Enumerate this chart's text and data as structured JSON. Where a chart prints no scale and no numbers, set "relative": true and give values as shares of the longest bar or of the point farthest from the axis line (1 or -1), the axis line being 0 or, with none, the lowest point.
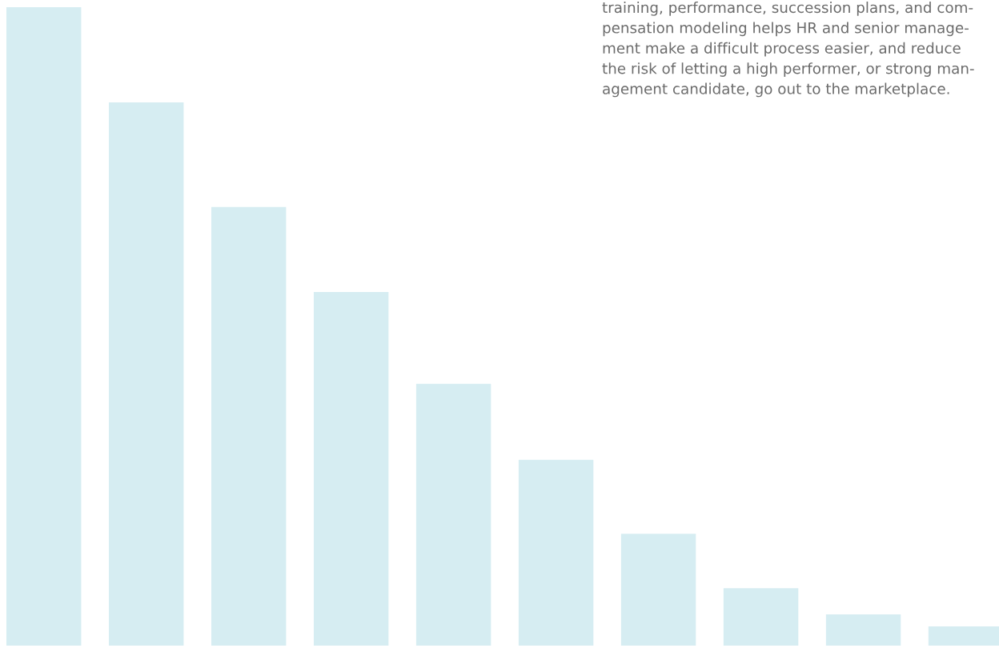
{
  "chart_data": {
    "type": "bar",
    "relative": true,
    "color": "#d6edf2",
    "categories": [
      null,
      null,
      null,
      null,
      null,
      null,
      null,
      null,
      null,
      null
    ],
    "values": [
      1,
      0.851,
      0.687,
      0.554,
      0.41,
      0.291,
      0.175,
      0.09,
      0.049,
      0.03
    ],
    "annotations": [
      "training, performance, succession plans, and com-\npensation modeling helps HR and senior manage-\nment make a difficult process easier, and reduce\nthe risk of letting a high performer, or strong man-\nagement candidate, go out to the marketplace."
    ]
  }
}
